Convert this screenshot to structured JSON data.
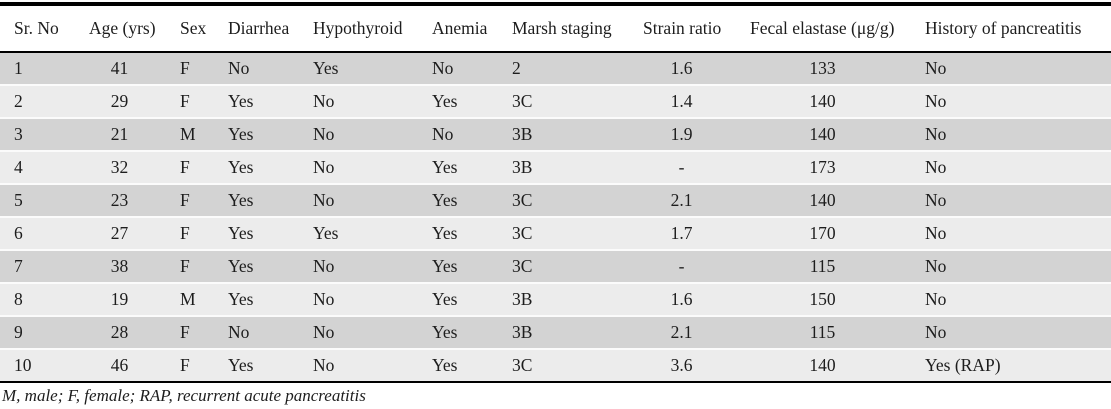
{
  "table": {
    "columns": [
      "Sr. No",
      "Age (yrs)",
      "Sex",
      "Diarrhea",
      "Hypothyroid",
      "Anemia",
      "Marsh staging",
      "Strain ratio",
      "Fecal elastase (μg/g)",
      "History of pancreatitis"
    ],
    "rows": [
      [
        "1",
        "41",
        "F",
        "No",
        "Yes",
        "No",
        "2",
        "1.6",
        "133",
        "No"
      ],
      [
        "2",
        "29",
        "F",
        "Yes",
        "No",
        "Yes",
        "3C",
        "1.4",
        "140",
        "No"
      ],
      [
        "3",
        "21",
        "M",
        "Yes",
        "No",
        "No",
        "3B",
        "1.9",
        "140",
        "No"
      ],
      [
        "4",
        "32",
        "F",
        "Yes",
        "No",
        "Yes",
        "3B",
        "-",
        "173",
        "No"
      ],
      [
        "5",
        "23",
        "F",
        "Yes",
        "No",
        "Yes",
        "3C",
        "2.1",
        "140",
        "No"
      ],
      [
        "6",
        "27",
        "F",
        "Yes",
        "Yes",
        "Yes",
        "3C",
        "1.7",
        "170",
        "No"
      ],
      [
        "7",
        "38",
        "F",
        "Yes",
        "No",
        "Yes",
        "3C",
        "-",
        "115",
        "No"
      ],
      [
        "8",
        "19",
        "M",
        "Yes",
        "No",
        "Yes",
        "3B",
        "1.6",
        "150",
        "No"
      ],
      [
        "9",
        "28",
        "F",
        "No",
        "No",
        "Yes",
        "3B",
        "2.1",
        "115",
        "No"
      ],
      [
        "10",
        "46",
        "F",
        "Yes",
        "No",
        "Yes",
        "3C",
        "3.6",
        "140",
        "Yes (RAP)"
      ]
    ],
    "footnote": "M, male; F, female; RAP, recurrent acute pancreatitis"
  },
  "colors": {
    "row_odd": "#d3d3d3",
    "row_even": "#ececec",
    "rule": "#000000",
    "text": "#1d1d1d"
  }
}
